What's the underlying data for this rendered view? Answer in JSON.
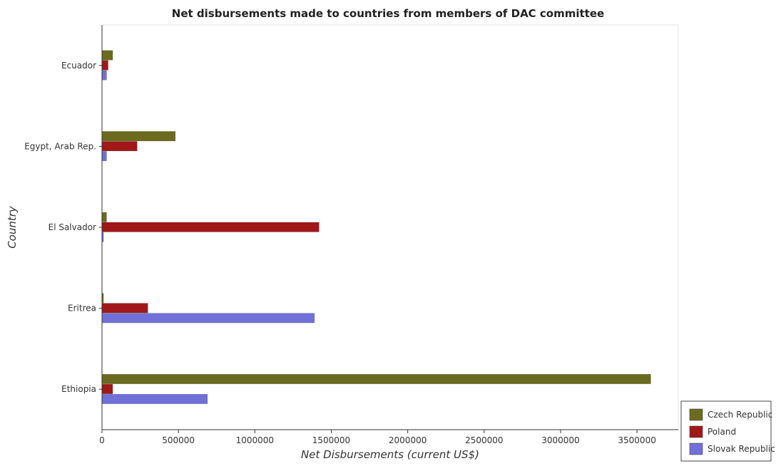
{
  "chart_data": {
    "type": "bar",
    "orientation": "horizontal",
    "title": "Net disbursements made to countries from members of DAC committee",
    "xlabel": "Net Disbursements (current US$)",
    "ylabel": "Country",
    "categories": [
      "Ecuador",
      "Egypt, Arab Rep.",
      "El Salvador",
      "Eritrea",
      "Ethiopia"
    ],
    "series": [
      {
        "name": "Czech Republic",
        "color": "#6b6b1f",
        "values": [
          70000,
          480000,
          30000,
          10000,
          3590000
        ]
      },
      {
        "name": "Poland",
        "color": "#a01818",
        "values": [
          40000,
          230000,
          1420000,
          300000,
          70000
        ]
      },
      {
        "name": "Slovak Republic",
        "color": "#7070d8",
        "values": [
          30000,
          30000,
          10000,
          1390000,
          690000
        ]
      }
    ],
    "x_ticks": [
      "0",
      "500000",
      "1000000",
      "1500000",
      "2000000",
      "2500000",
      "3000000",
      "3500000"
    ],
    "xlim": [
      0,
      3770000
    ],
    "grid": false,
    "legend_position": "bottom-right"
  }
}
